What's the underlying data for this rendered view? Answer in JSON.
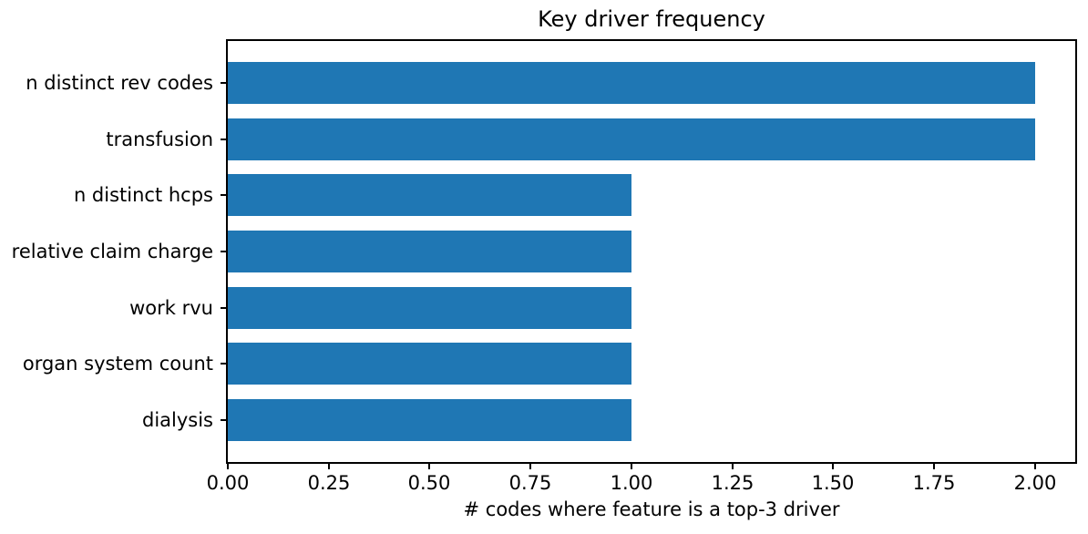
{
  "chart_data": {
    "type": "bar",
    "orientation": "horizontal",
    "title": "Key driver frequency",
    "xlabel": "# codes where feature is a top-3 driver",
    "ylabel": "",
    "categories": [
      "n distinct rev codes",
      "transfusion",
      "n distinct hcps",
      "relative claim charge",
      "work rvu",
      "organ system count",
      "dialysis"
    ],
    "values": [
      2,
      2,
      1,
      1,
      1,
      1,
      1
    ],
    "xlim": [
      0,
      2.1
    ],
    "xticks": [
      0,
      0.25,
      0.5,
      0.75,
      1.0,
      1.25,
      1.5,
      1.75,
      2.0
    ],
    "xtick_labels": [
      "0.00",
      "0.25",
      "0.50",
      "0.75",
      "1.00",
      "1.25",
      "1.50",
      "1.75",
      "2.00"
    ],
    "grid": false,
    "legend_position": "none",
    "bar_color": "#1f77b4",
    "axis_color": "#000000",
    "text_color": "#000000",
    "background_color": "#ffffff"
  }
}
